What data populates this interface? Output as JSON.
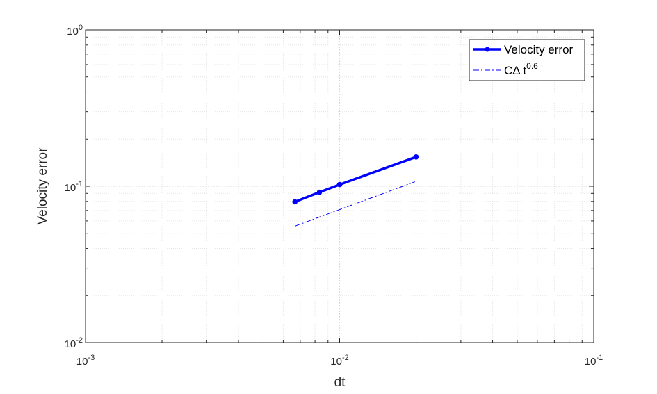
{
  "chart_data": {
    "type": "line",
    "xlabel": "dt",
    "ylabel": "Velocity error",
    "xscale": "log",
    "yscale": "log",
    "xlim": [
      0.001,
      0.1
    ],
    "ylim": [
      0.01,
      1
    ],
    "grid": true,
    "minor_grid": true,
    "legend_position": "top-right",
    "x_ticks": [
      {
        "value": 0.001,
        "base": "10",
        "exp": "-3"
      },
      {
        "value": 0.01,
        "base": "10",
        "exp": "-2"
      },
      {
        "value": 0.1,
        "base": "10",
        "exp": "-1"
      }
    ],
    "y_ticks": [
      {
        "value": 0.01,
        "base": "10",
        "exp": "-2"
      },
      {
        "value": 0.1,
        "base": "10",
        "exp": "-1"
      },
      {
        "value": 1,
        "base": "10",
        "exp": "0"
      }
    ],
    "series": [
      {
        "name": "Velocity error",
        "color": "#0000ff",
        "style": "solid",
        "marker": "circle",
        "x": [
          0.00667,
          0.00833,
          0.01,
          0.02
        ],
        "y": [
          0.0795,
          0.0915,
          0.1025,
          0.154
        ]
      },
      {
        "name": "CΔ t^0.6",
        "legend_main": "CΔ t",
        "legend_exp": "0.6",
        "color": "#0000ff",
        "style": "dashdot",
        "marker": "none",
        "x": [
          0.00667,
          0.02
        ],
        "y": [
          0.0556,
          0.1075
        ]
      }
    ]
  }
}
